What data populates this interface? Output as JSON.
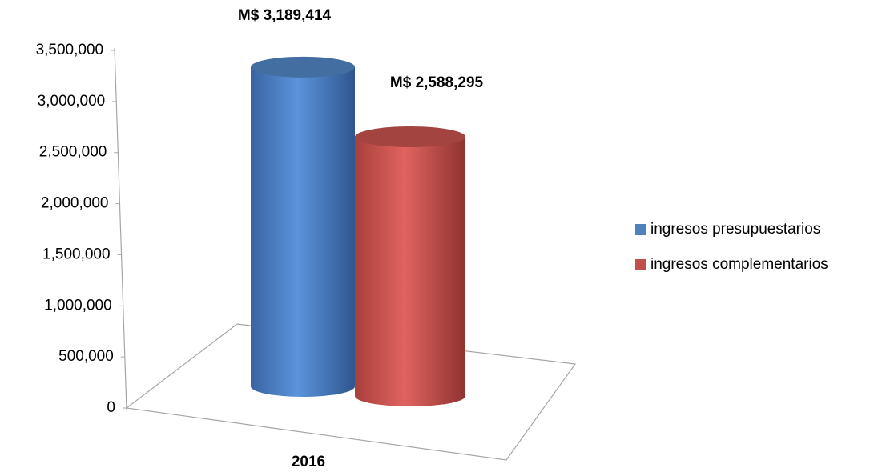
{
  "chart_data": {
    "type": "bar3d",
    "categories": [
      "2016"
    ],
    "series": [
      {
        "name": "ingresos presupuestarios",
        "color": "#4f81bd",
        "values": [
          3189414
        ],
        "value_labels": [
          "M$ 3,189,414"
        ]
      },
      {
        "name": "ingresos complementarios",
        "color": "#c0504d",
        "values": [
          2588295
        ],
        "value_labels": [
          "M$ 2,588,295"
        ]
      }
    ],
    "ylim": [
      0,
      3500000
    ],
    "yticks": [
      0,
      {
        "value": 500000,
        "label": "500,000"
      },
      {
        "value": 1000000,
        "label": "1,000,000"
      },
      {
        "value": 1500000,
        "label": "1,500,000"
      },
      {
        "value": 2000000,
        "label": "2,000,000"
      },
      {
        "value": 2500000,
        "label": "2,500,000"
      },
      {
        "value": 3000000,
        "label": "3,000,000"
      },
      {
        "value": 3500000,
        "label": "3,500,000"
      }
    ],
    "legend": "right"
  }
}
